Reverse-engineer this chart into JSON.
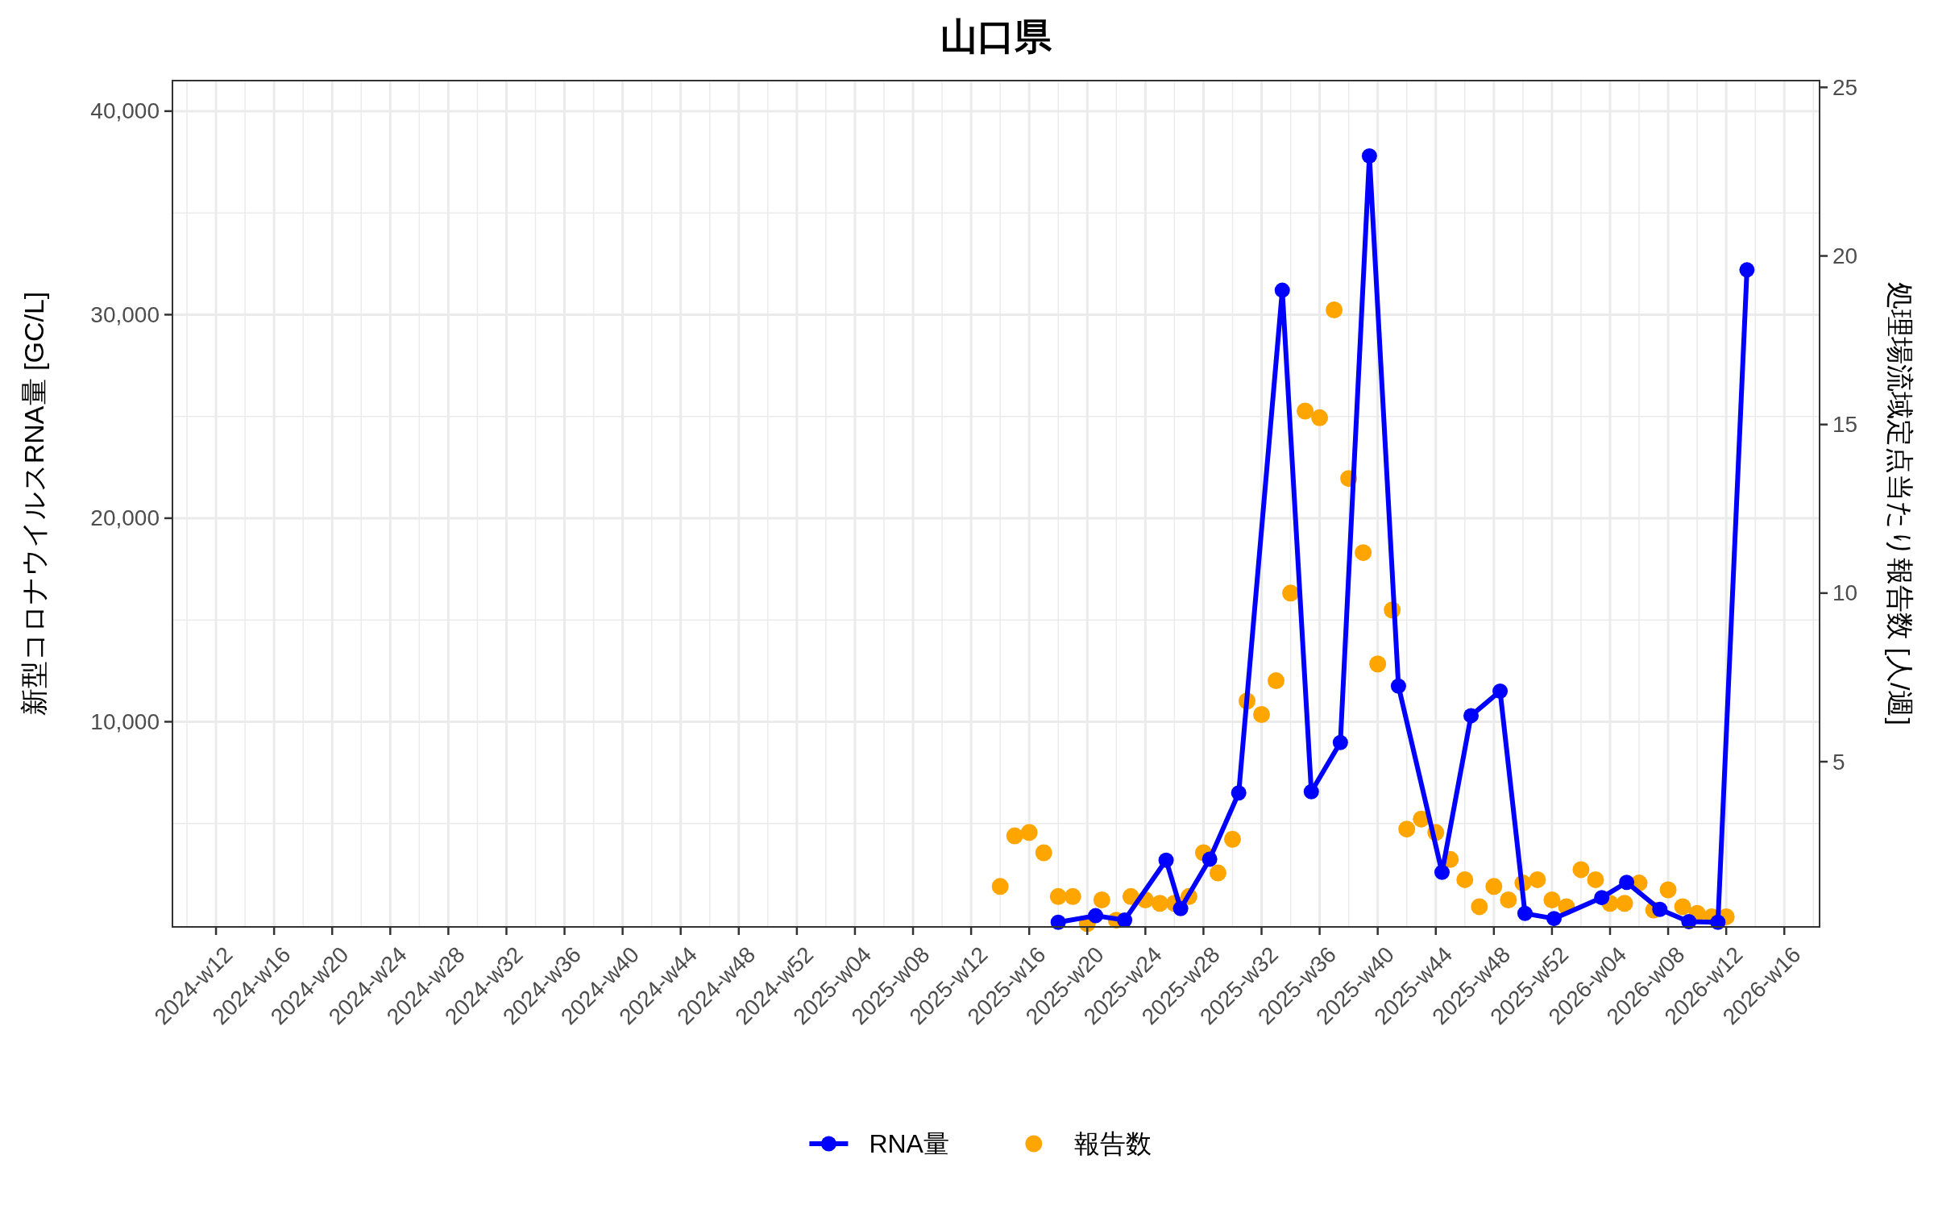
{
  "chart_data": {
    "type": "line",
    "title": "山口県",
    "ylabel": "新型コロナウイルスRNA量 [GC/L]",
    "y2label": "処理場流域定点当たり報告数 [人/週]",
    "xlim": [
      "2024-02-26",
      "2026-04-30"
    ],
    "xticks": [
      {
        "value": "2024-03-18",
        "label": "2024-w12"
      },
      {
        "value": "2024-04-15",
        "label": "2024-w16"
      },
      {
        "value": "2024-05-13",
        "label": "2024-w20"
      },
      {
        "value": "2024-06-10",
        "label": "2024-w24"
      },
      {
        "value": "2024-07-08",
        "label": "2024-w28"
      },
      {
        "value": "2024-08-05",
        "label": "2024-w32"
      },
      {
        "value": "2024-09-02",
        "label": "2024-w36"
      },
      {
        "value": "2024-09-30",
        "label": "2024-w40"
      },
      {
        "value": "2024-10-28",
        "label": "2024-w44"
      },
      {
        "value": "2024-11-25",
        "label": "2024-w48"
      },
      {
        "value": "2024-12-23",
        "label": "2024-w52"
      },
      {
        "value": "2025-01-20",
        "label": "2025-w04"
      },
      {
        "value": "2025-02-17",
        "label": "2025-w08"
      },
      {
        "value": "2025-03-17",
        "label": "2025-w12"
      },
      {
        "value": "2025-04-14",
        "label": "2025-w16"
      },
      {
        "value": "2025-05-12",
        "label": "2025-w20"
      },
      {
        "value": "2025-06-09",
        "label": "2025-w24"
      },
      {
        "value": "2025-07-07",
        "label": "2025-w28"
      },
      {
        "value": "2025-08-04",
        "label": "2025-w32"
      },
      {
        "value": "2025-09-01",
        "label": "2025-w36"
      },
      {
        "value": "2025-09-29",
        "label": "2025-w40"
      },
      {
        "value": "2025-10-27",
        "label": "2025-w44"
      },
      {
        "value": "2025-11-24",
        "label": "2025-w48"
      },
      {
        "value": "2025-12-22",
        "label": "2025-w52"
      },
      {
        "value": "2026-01-19",
        "label": "2026-w04"
      },
      {
        "value": "2026-02-16",
        "label": "2026-w08"
      },
      {
        "value": "2026-03-16",
        "label": "2026-w12"
      },
      {
        "value": "2026-04-13",
        "label": "2026-w16"
      }
    ],
    "ylim": [
      -80,
      41500
    ],
    "yticks": [
      {
        "value": 10000,
        "label": "10,000"
      },
      {
        "value": 20000,
        "label": "20,000"
      },
      {
        "value": 30000,
        "label": "30,000"
      },
      {
        "value": 40000,
        "label": "40,000"
      }
    ],
    "y2lim": [
      0.1,
      25.2
    ],
    "y2ticks": [
      5,
      10,
      15,
      20,
      25
    ],
    "grid": true,
    "legend": "bottom",
    "marker": "circle",
    "series": [
      {
        "name": "RNA量",
        "color": "#0000ff",
        "x": [
          "2025-04-28",
          "2025-05-16",
          "2025-05-30",
          "2025-06-19",
          "2025-06-26",
          "2025-07-10",
          "2025-07-24",
          "2025-08-14",
          "2025-08-28",
          "2025-09-11",
          "2025-09-25",
          "2025-10-09",
          "2025-10-30",
          "2025-11-13",
          "2025-11-27",
          "2025-12-09",
          "2025-12-23",
          "2026-01-15",
          "2026-01-27",
          "2026-02-12",
          "2026-02-26",
          "2026-03-12",
          "2026-03-26"
        ],
        "values": [
          150,
          470,
          260,
          3200,
          820,
          3250,
          6500,
          31200,
          6560,
          8980,
          37800,
          11750,
          2600,
          10300,
          11500,
          580,
          330,
          1360,
          2110,
          780,
          180,
          150,
          32200
        ]
      },
      {
        "name": "報告数",
        "type": "scatter",
        "axis": "y2",
        "color": "#ffa500",
        "x": [
          "2025-03-31",
          "2025-04-07",
          "2025-04-14",
          "2025-04-21",
          "2025-04-28",
          "2025-05-05",
          "2025-05-12",
          "2025-05-19",
          "2025-05-26",
          "2025-06-02",
          "2025-06-09",
          "2025-06-16",
          "2025-06-23",
          "2025-06-30",
          "2025-07-07",
          "2025-07-14",
          "2025-07-21",
          "2025-07-28",
          "2025-08-04",
          "2025-08-11",
          "2025-08-18",
          "2025-08-25",
          "2025-09-01",
          "2025-09-08",
          "2025-09-15",
          "2025-09-22",
          "2025-09-29",
          "2025-10-06",
          "2025-10-13",
          "2025-10-20",
          "2025-10-27",
          "2025-11-03",
          "2025-11-10",
          "2025-11-17",
          "2025-11-24",
          "2025-12-01",
          "2025-12-08",
          "2025-12-15",
          "2025-12-22",
          "2025-12-29",
          "2026-01-05",
          "2026-01-12",
          "2026-01-19",
          "2026-01-26",
          "2026-02-02",
          "2026-02-09",
          "2026-02-16",
          "2026-02-23",
          "2026-03-02",
          "2026-03-09",
          "2026-03-16"
        ],
        "values": [
          1.3,
          2.8,
          2.9,
          2.3,
          1.0,
          1.0,
          0.2,
          0.9,
          0.3,
          1.0,
          0.9,
          0.8,
          0.8,
          1.0,
          2.3,
          1.7,
          2.7,
          6.8,
          6.4,
          7.4,
          10.0,
          15.4,
          15.2,
          18.4,
          13.4,
          11.2,
          7.9,
          9.5,
          3.0,
          3.3,
          2.9,
          2.1,
          1.5,
          0.7,
          1.3,
          0.9,
          1.4,
          1.5,
          0.9,
          0.7,
          1.8,
          1.5,
          0.8,
          0.8,
          1.4,
          0.6,
          1.2,
          0.7,
          0.5,
          0.4,
          0.4
        ]
      }
    ]
  }
}
